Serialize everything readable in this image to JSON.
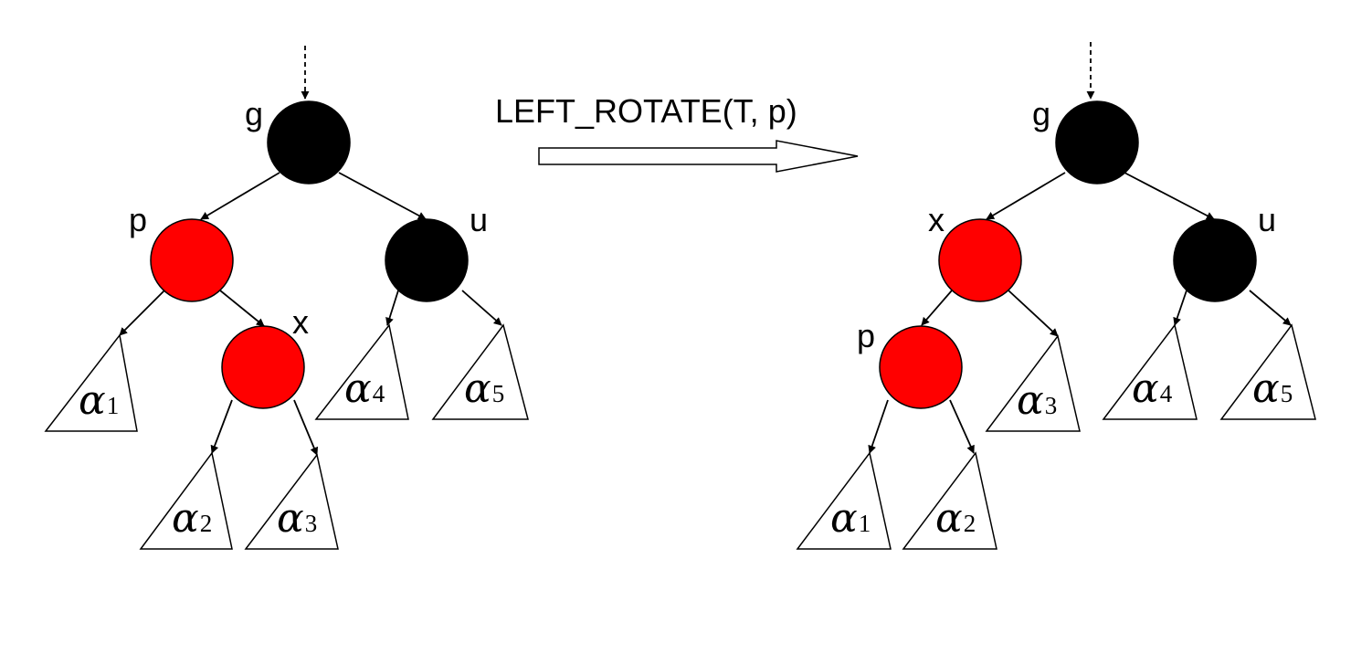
{
  "operation": {
    "label": "LEFT_ROTATE(T, p)"
  },
  "colors": {
    "red": "#ff0000",
    "black": "#000000"
  },
  "before": {
    "nodes": [
      {
        "id": "g",
        "label": "g",
        "color": "black"
      },
      {
        "id": "p",
        "label": "p",
        "color": "red"
      },
      {
        "id": "u",
        "label": "u",
        "color": "black"
      },
      {
        "id": "x",
        "label": "x",
        "color": "red"
      }
    ],
    "subtrees": [
      {
        "id": "a1",
        "symbol": "α",
        "subscript": "1"
      },
      {
        "id": "a2",
        "symbol": "α",
        "subscript": "2"
      },
      {
        "id": "a3",
        "symbol": "α",
        "subscript": "3"
      },
      {
        "id": "a4",
        "symbol": "α",
        "subscript": "4"
      },
      {
        "id": "a5",
        "symbol": "α",
        "subscript": "5"
      }
    ]
  },
  "after": {
    "nodes": [
      {
        "id": "g",
        "label": "g",
        "color": "black"
      },
      {
        "id": "x",
        "label": "x",
        "color": "red"
      },
      {
        "id": "u",
        "label": "u",
        "color": "black"
      },
      {
        "id": "p",
        "label": "p",
        "color": "red"
      }
    ],
    "subtrees": [
      {
        "id": "a1",
        "symbol": "α",
        "subscript": "1"
      },
      {
        "id": "a2",
        "symbol": "α",
        "subscript": "2"
      },
      {
        "id": "a3",
        "symbol": "α",
        "subscript": "3"
      },
      {
        "id": "a4",
        "symbol": "α",
        "subscript": "4"
      },
      {
        "id": "a5",
        "symbol": "α",
        "subscript": "5"
      }
    ]
  }
}
